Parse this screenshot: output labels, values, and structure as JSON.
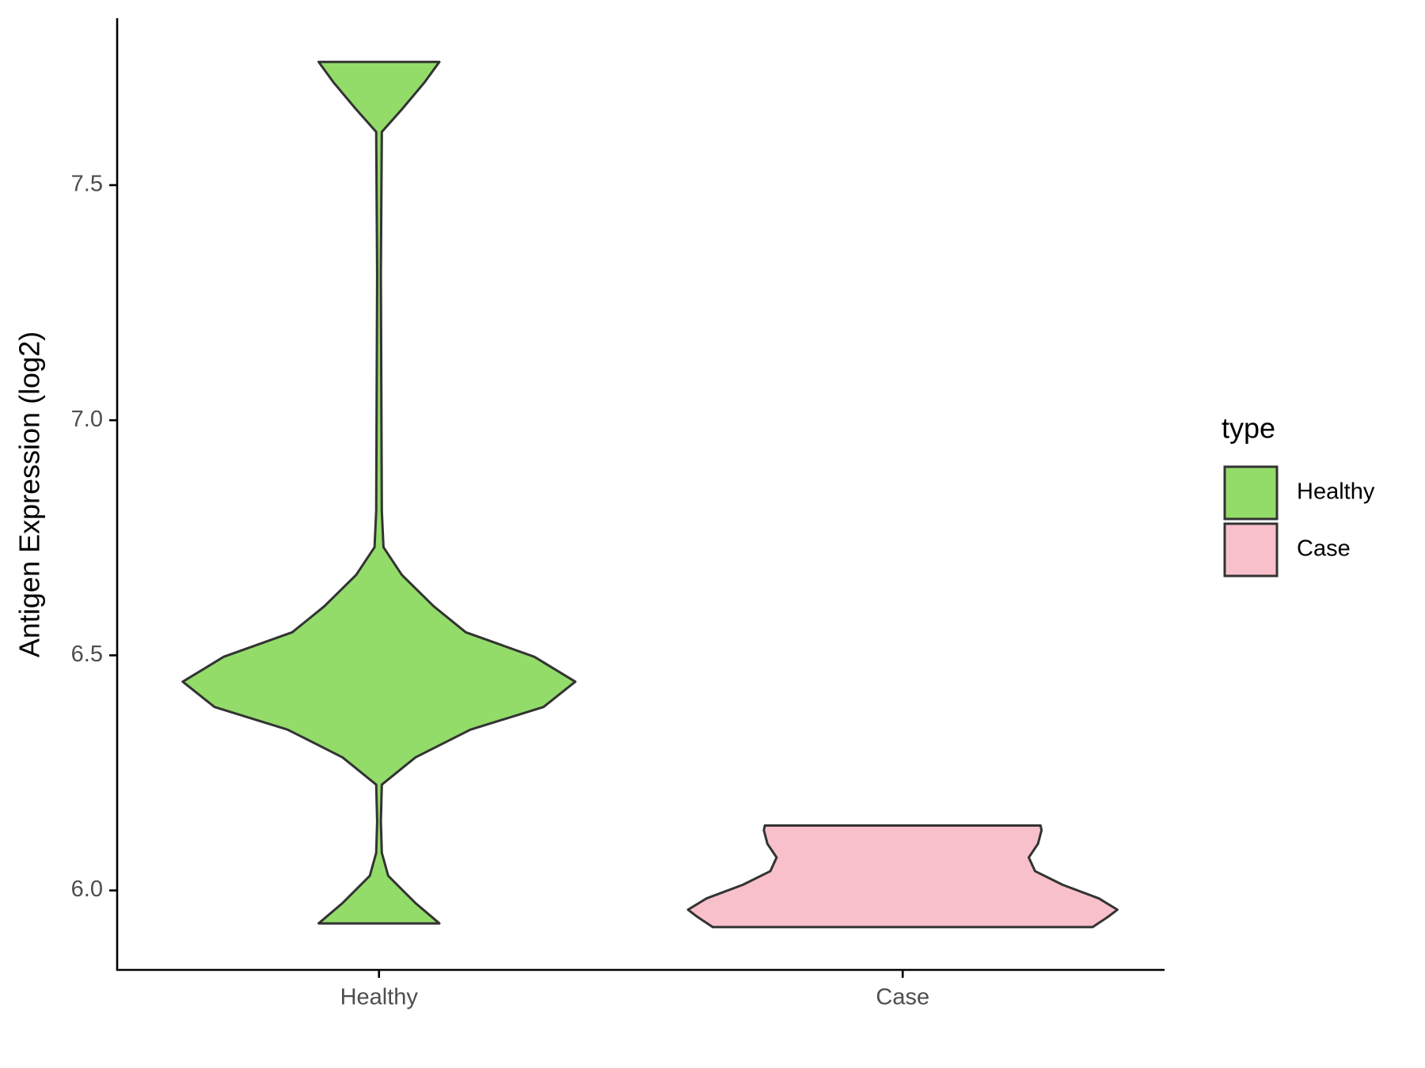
{
  "chart_data": {
    "type": "violin",
    "y_label": "Antigen Expression (log2)",
    "categories": [
      "Healthy",
      "Case"
    ],
    "ylim": [
      5.831,
      7.855
    ],
    "yticks": [
      {
        "value": 6,
        "label": "6.0"
      },
      6.5,
      {
        "value": 7,
        "label": "7.0"
      },
      7.5
    ],
    "legend_title": "type",
    "legend": "right",
    "series": [
      {
        "name": "Healthy",
        "color": "#93dc6a",
        "y": [
          5.93,
          5.973,
          6.031,
          6.08,
          6.147,
          6.225,
          6.283,
          6.342,
          6.39,
          6.444,
          6.497,
          6.549,
          6.604,
          6.671,
          6.73,
          6.807,
          7.312,
          7.613,
          7.661,
          7.719,
          7.762
        ],
        "width": [
          0.256,
          0.155,
          0.039,
          0.012,
          0.008,
          0.012,
          0.155,
          0.388,
          0.698,
          0.833,
          0.659,
          0.368,
          0.233,
          0.097,
          0.019,
          0.012,
          0.008,
          0.012,
          0.097,
          0.194,
          0.256
        ]
      },
      {
        "name": "Case",
        "color": "#f8c0cb",
        "y": [
          5.922,
          5.944,
          5.959,
          5.983,
          6.012,
          6.041,
          6.07,
          6.099,
          6.128,
          6.138
        ],
        "width": [
          0.806,
          0.872,
          0.911,
          0.833,
          0.678,
          0.562,
          0.535,
          0.574,
          0.589,
          0.585
        ]
      }
    ]
  }
}
